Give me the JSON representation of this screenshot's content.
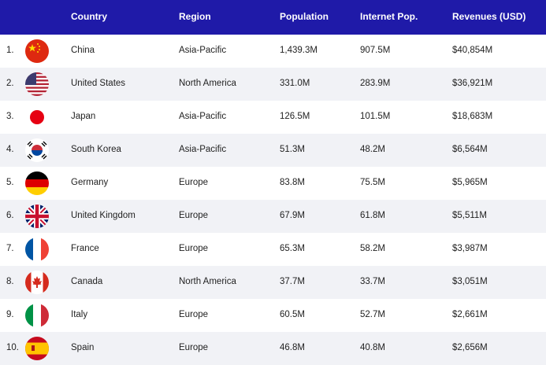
{
  "headers": {
    "country": "Country",
    "region": "Region",
    "population": "Population",
    "internet": "Internet Pop.",
    "revenues": "Revenues (USD)"
  },
  "rows": [
    {
      "rank": "1.",
      "country": "China",
      "region": "Asia-Pacific",
      "population": "1,439.3M",
      "internet": "907.5M",
      "revenue": "$40,854M",
      "flag": "china-flag-icon"
    },
    {
      "rank": "2.",
      "country": "United States",
      "region": "North America",
      "population": "331.0M",
      "internet": "283.9M",
      "revenue": "$36,921M",
      "flag": "usa-flag-icon"
    },
    {
      "rank": "3.",
      "country": "Japan",
      "region": "Asia-Pacific",
      "population": "126.5M",
      "internet": "101.5M",
      "revenue": "$18,683M",
      "flag": "japan-flag-icon"
    },
    {
      "rank": "4.",
      "country": "South Korea",
      "region": "Asia-Pacific",
      "population": "51.3M",
      "internet": "48.2M",
      "revenue": "$6,564M",
      "flag": "south-korea-flag-icon"
    },
    {
      "rank": "5.",
      "country": "Germany",
      "region": "Europe",
      "population": "83.8M",
      "internet": "75.5M",
      "revenue": "$5,965M",
      "flag": "germany-flag-icon"
    },
    {
      "rank": "6.",
      "country": "United Kingdom",
      "region": "Europe",
      "population": "67.9M",
      "internet": "61.8M",
      "revenue": "$5,511M",
      "flag": "uk-flag-icon"
    },
    {
      "rank": "7.",
      "country": "France",
      "region": "Europe",
      "population": "65.3M",
      "internet": "58.2M",
      "revenue": "$3,987M",
      "flag": "france-flag-icon"
    },
    {
      "rank": "8.",
      "country": "Canada",
      "region": "North America",
      "population": "37.7M",
      "internet": "33.7M",
      "revenue": "$3,051M",
      "flag": "canada-flag-icon"
    },
    {
      "rank": "9.",
      "country": "Italy",
      "region": "Europe",
      "population": "60.5M",
      "internet": "52.7M",
      "revenue": "$2,661M",
      "flag": "italy-flag-icon"
    },
    {
      "rank": "10.",
      "country": "Spain",
      "region": "Europe",
      "population": "46.8M",
      "internet": "40.8M",
      "revenue": "$2,656M",
      "flag": "spain-flag-icon"
    }
  ],
  "colors": {
    "header_bg": "#1f1aa8",
    "alt_row_bg": "#f1f2f6"
  }
}
